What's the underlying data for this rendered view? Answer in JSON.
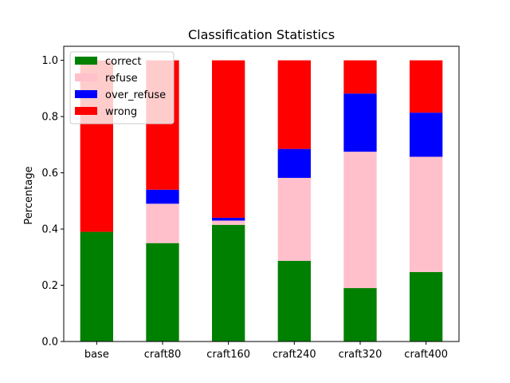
{
  "chart_data": {
    "type": "bar",
    "stacked": true,
    "title": "Classification Statistics",
    "xlabel": "",
    "ylabel": "Percentage",
    "ylim": [
      0,
      1.05
    ],
    "yticks": [
      "0.0",
      "0.2",
      "0.4",
      "0.6",
      "0.8",
      "1.0"
    ],
    "categories": [
      "base",
      "craft80",
      "craft160",
      "craft240",
      "craft320",
      "craft400"
    ],
    "series": [
      {
        "name": "correct",
        "color": "#008000",
        "values": [
          0.39,
          0.35,
          0.415,
          0.287,
          0.19,
          0.247
        ]
      },
      {
        "name": "refuse",
        "color": "#ffc0cb",
        "values": [
          0.0,
          0.14,
          0.015,
          0.295,
          0.485,
          0.41
        ]
      },
      {
        "name": "over_refuse",
        "color": "#0000ff",
        "values": [
          0.0,
          0.05,
          0.01,
          0.103,
          0.207,
          0.157
        ]
      },
      {
        "name": "wrong",
        "color": "#ff0000",
        "values": [
          0.61,
          0.46,
          0.56,
          0.315,
          0.118,
          0.186
        ]
      }
    ],
    "legend_position": "top-left",
    "grid": false
  }
}
